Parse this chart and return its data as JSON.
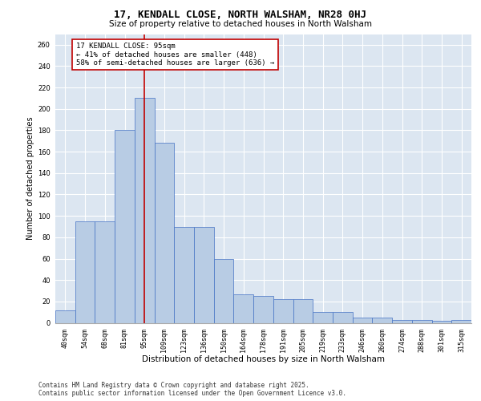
{
  "title_line1": "17, KENDALL CLOSE, NORTH WALSHAM, NR28 0HJ",
  "title_line2": "Size of property relative to detached houses in North Walsham",
  "xlabel": "Distribution of detached houses by size in North Walsham",
  "ylabel": "Number of detached properties",
  "categories": [
    "40sqm",
    "54sqm",
    "68sqm",
    "81sqm",
    "95sqm",
    "109sqm",
    "123sqm",
    "136sqm",
    "150sqm",
    "164sqm",
    "178sqm",
    "191sqm",
    "205sqm",
    "219sqm",
    "233sqm",
    "246sqm",
    "260sqm",
    "274sqm",
    "288sqm",
    "301sqm",
    "315sqm"
  ],
  "values": [
    12,
    95,
    95,
    180,
    210,
    168,
    90,
    90,
    60,
    27,
    25,
    22,
    22,
    10,
    10,
    5,
    5,
    3,
    3,
    2,
    3
  ],
  "bar_color": "#b8cce4",
  "bar_edge_color": "#4472c4",
  "vline_x_index": 4,
  "vline_color": "#c00000",
  "annotation_text": "17 KENDALL CLOSE: 95sqm\n← 41% of detached houses are smaller (448)\n58% of semi-detached houses are larger (636) →",
  "annotation_box_color": "#c00000",
  "ylim": [
    0,
    270
  ],
  "yticks": [
    0,
    20,
    40,
    60,
    80,
    100,
    120,
    140,
    160,
    180,
    200,
    220,
    240,
    260
  ],
  "bg_color": "#dce6f1",
  "footer_text": "Contains HM Land Registry data © Crown copyright and database right 2025.\nContains public sector information licensed under the Open Government Licence v3.0.",
  "title_fontsize": 9,
  "subtitle_fontsize": 7.5,
  "xlabel_fontsize": 7.5,
  "ylabel_fontsize": 7,
  "tick_fontsize": 6,
  "annotation_fontsize": 6.5,
  "footer_fontsize": 5.5
}
